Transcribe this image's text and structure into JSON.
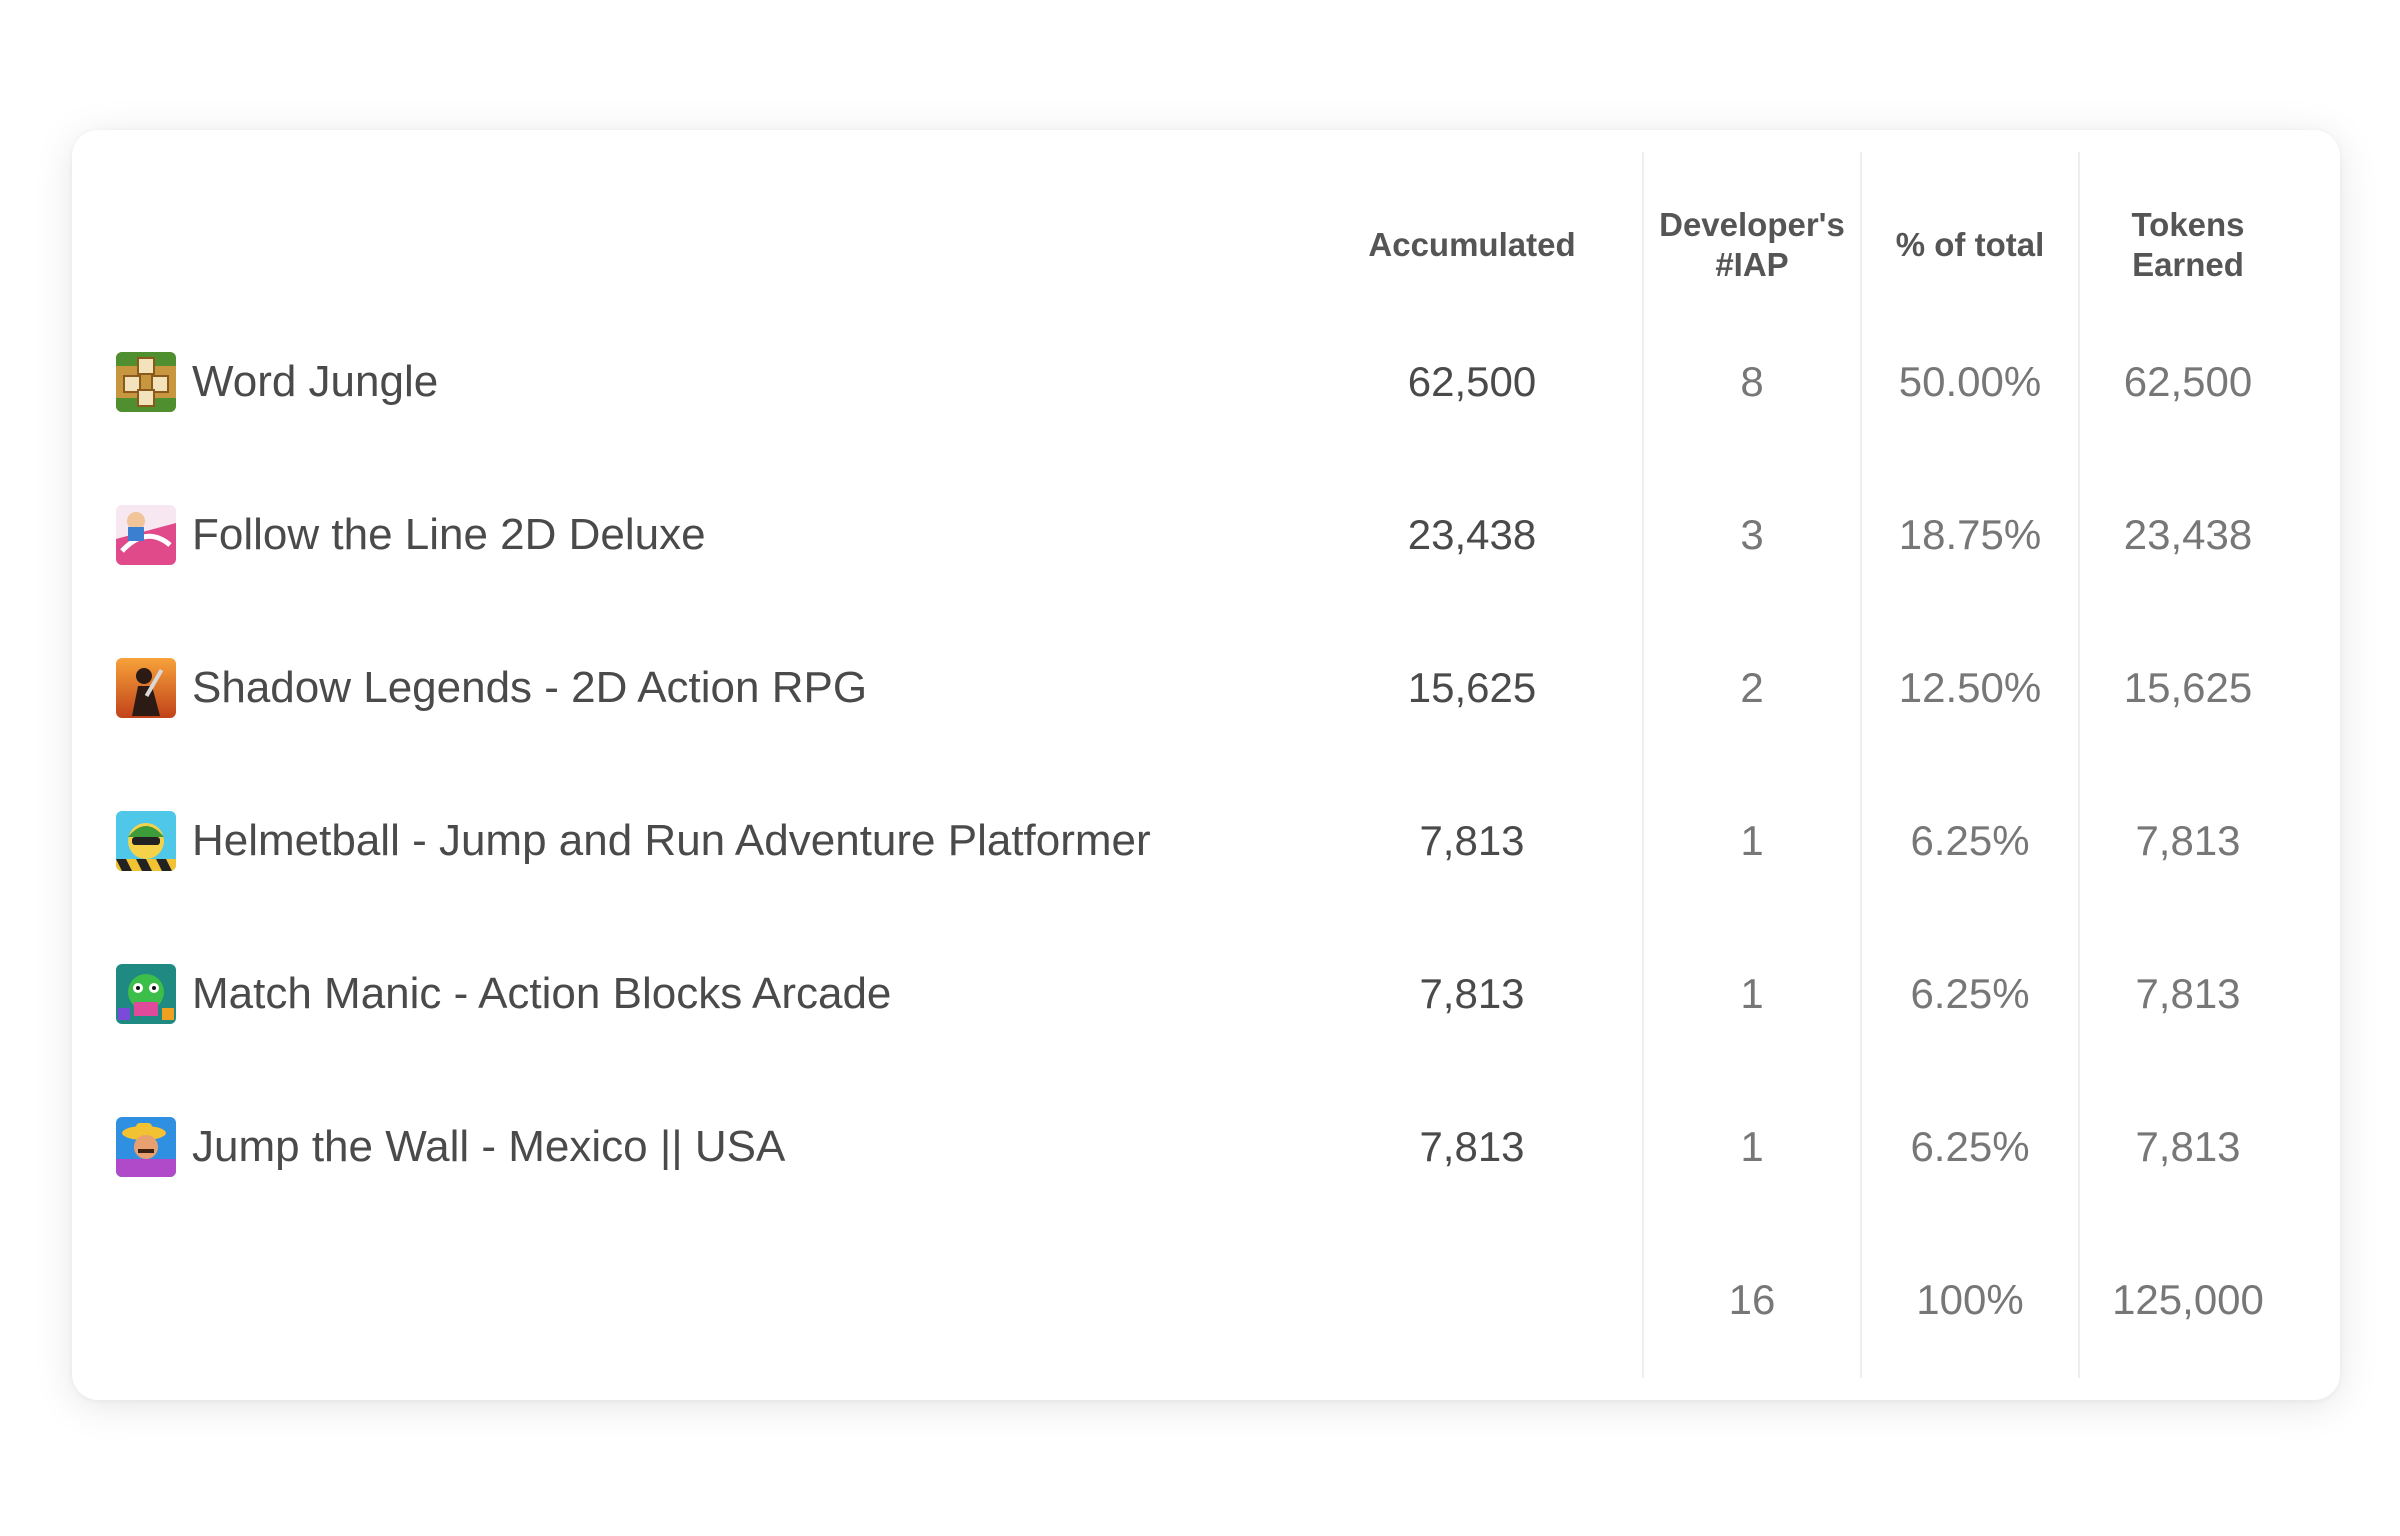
{
  "columns": {
    "accumulated": "Accumulated",
    "iap_line1": "Developer's",
    "iap_line2": "#IAP",
    "percent": "% of total",
    "tokens_line1": "Tokens",
    "tokens_line2": "Earned"
  },
  "rows": [
    {
      "name": "Word Jungle",
      "icon": "word-jungle-icon",
      "accumulated": "62,500",
      "iap": "8",
      "percent": "50.00%",
      "tokens": "62,500"
    },
    {
      "name": "Follow the Line 2D Deluxe",
      "icon": "follow-the-line-icon",
      "accumulated": "23,438",
      "iap": "3",
      "percent": "18.75%",
      "tokens": "23,438"
    },
    {
      "name": "Shadow Legends - 2D Action RPG",
      "icon": "shadow-legends-icon",
      "accumulated": "15,625",
      "iap": "2",
      "percent": "12.50%",
      "tokens": "15,625"
    },
    {
      "name": "Helmetball - Jump and Run Adventure Platformer",
      "icon": "helmetball-icon",
      "accumulated": "7,813",
      "iap": "1",
      "percent": "6.25%",
      "tokens": "7,813"
    },
    {
      "name": "Match Manic - Action Blocks Arcade",
      "icon": "match-manic-icon",
      "accumulated": "7,813",
      "iap": "1",
      "percent": "6.25%",
      "tokens": "7,813"
    },
    {
      "name": "Jump the Wall - Mexico || USA",
      "icon": "jump-the-wall-icon",
      "accumulated": "7,813",
      "iap": "1",
      "percent": "6.25%",
      "tokens": "7,813"
    }
  ],
  "totals": {
    "iap": "16",
    "percent": "100%",
    "tokens": "125,000"
  },
  "colors": {
    "text_dark": "#4a4a4a",
    "text_muted": "#777777",
    "header": "#555555",
    "divider": "#eeeeee"
  }
}
